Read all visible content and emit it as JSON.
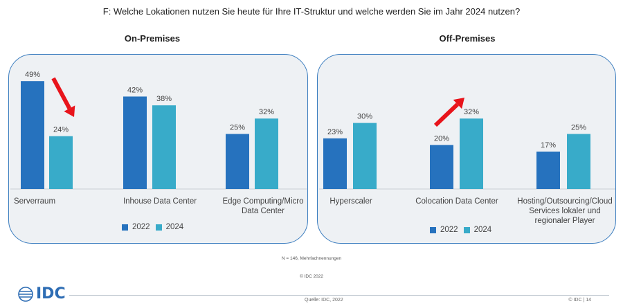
{
  "question": "F:  Welche Lokationen nutzen Sie heute für Ihre IT-Struktur und welche werden Sie im Jahr 2024 nutzen?",
  "colors": {
    "series_2022": "#2672be",
    "series_2024": "#38abc9",
    "arrow": "#e8141b",
    "panel_border": "#3b7dbf",
    "panel_bg": "#eef1f4"
  },
  "chart_data": [
    {
      "type": "bar",
      "title": "On-Premises",
      "categories": [
        "Serverraum",
        "Inhouse Data Center",
        "Edge Computing/Micro Data Center"
      ],
      "series": [
        {
          "name": "2022",
          "values": [
            49,
            42,
            25
          ]
        },
        {
          "name": "2024",
          "values": [
            24,
            38,
            32
          ]
        }
      ],
      "value_labels": [
        [
          "49%",
          "42%",
          "25%"
        ],
        [
          "24%",
          "38%",
          "32%"
        ]
      ],
      "annotations": [
        {
          "type": "arrow",
          "direction": "down",
          "category": "Serverraum"
        }
      ],
      "legend_position": "bottom"
    },
    {
      "type": "bar",
      "title": "Off-Premises",
      "categories": [
        "Hyperscaler",
        "Colocation Data Center",
        "Hosting/Outsourcing/Cloud Services lokaler und regionaler Player"
      ],
      "series": [
        {
          "name": "2022",
          "values": [
            23,
            20,
            17
          ]
        },
        {
          "name": "2024",
          "values": [
            30,
            32,
            25
          ]
        }
      ],
      "value_labels": [
        [
          "23%",
          "20%",
          "17%"
        ],
        [
          "30%",
          "32%",
          "25%"
        ]
      ],
      "annotations": [
        {
          "type": "arrow",
          "direction": "up",
          "category": "Colocation Data Center"
        }
      ],
      "legend_position": "bottom"
    }
  ],
  "note": "N = 146, Mehrfachnennungen",
  "copyright": "© IDC 2022",
  "footer": {
    "logo_text": "IDC",
    "source": "Quelle: IDC, 2022",
    "page": "© IDC |  14"
  }
}
